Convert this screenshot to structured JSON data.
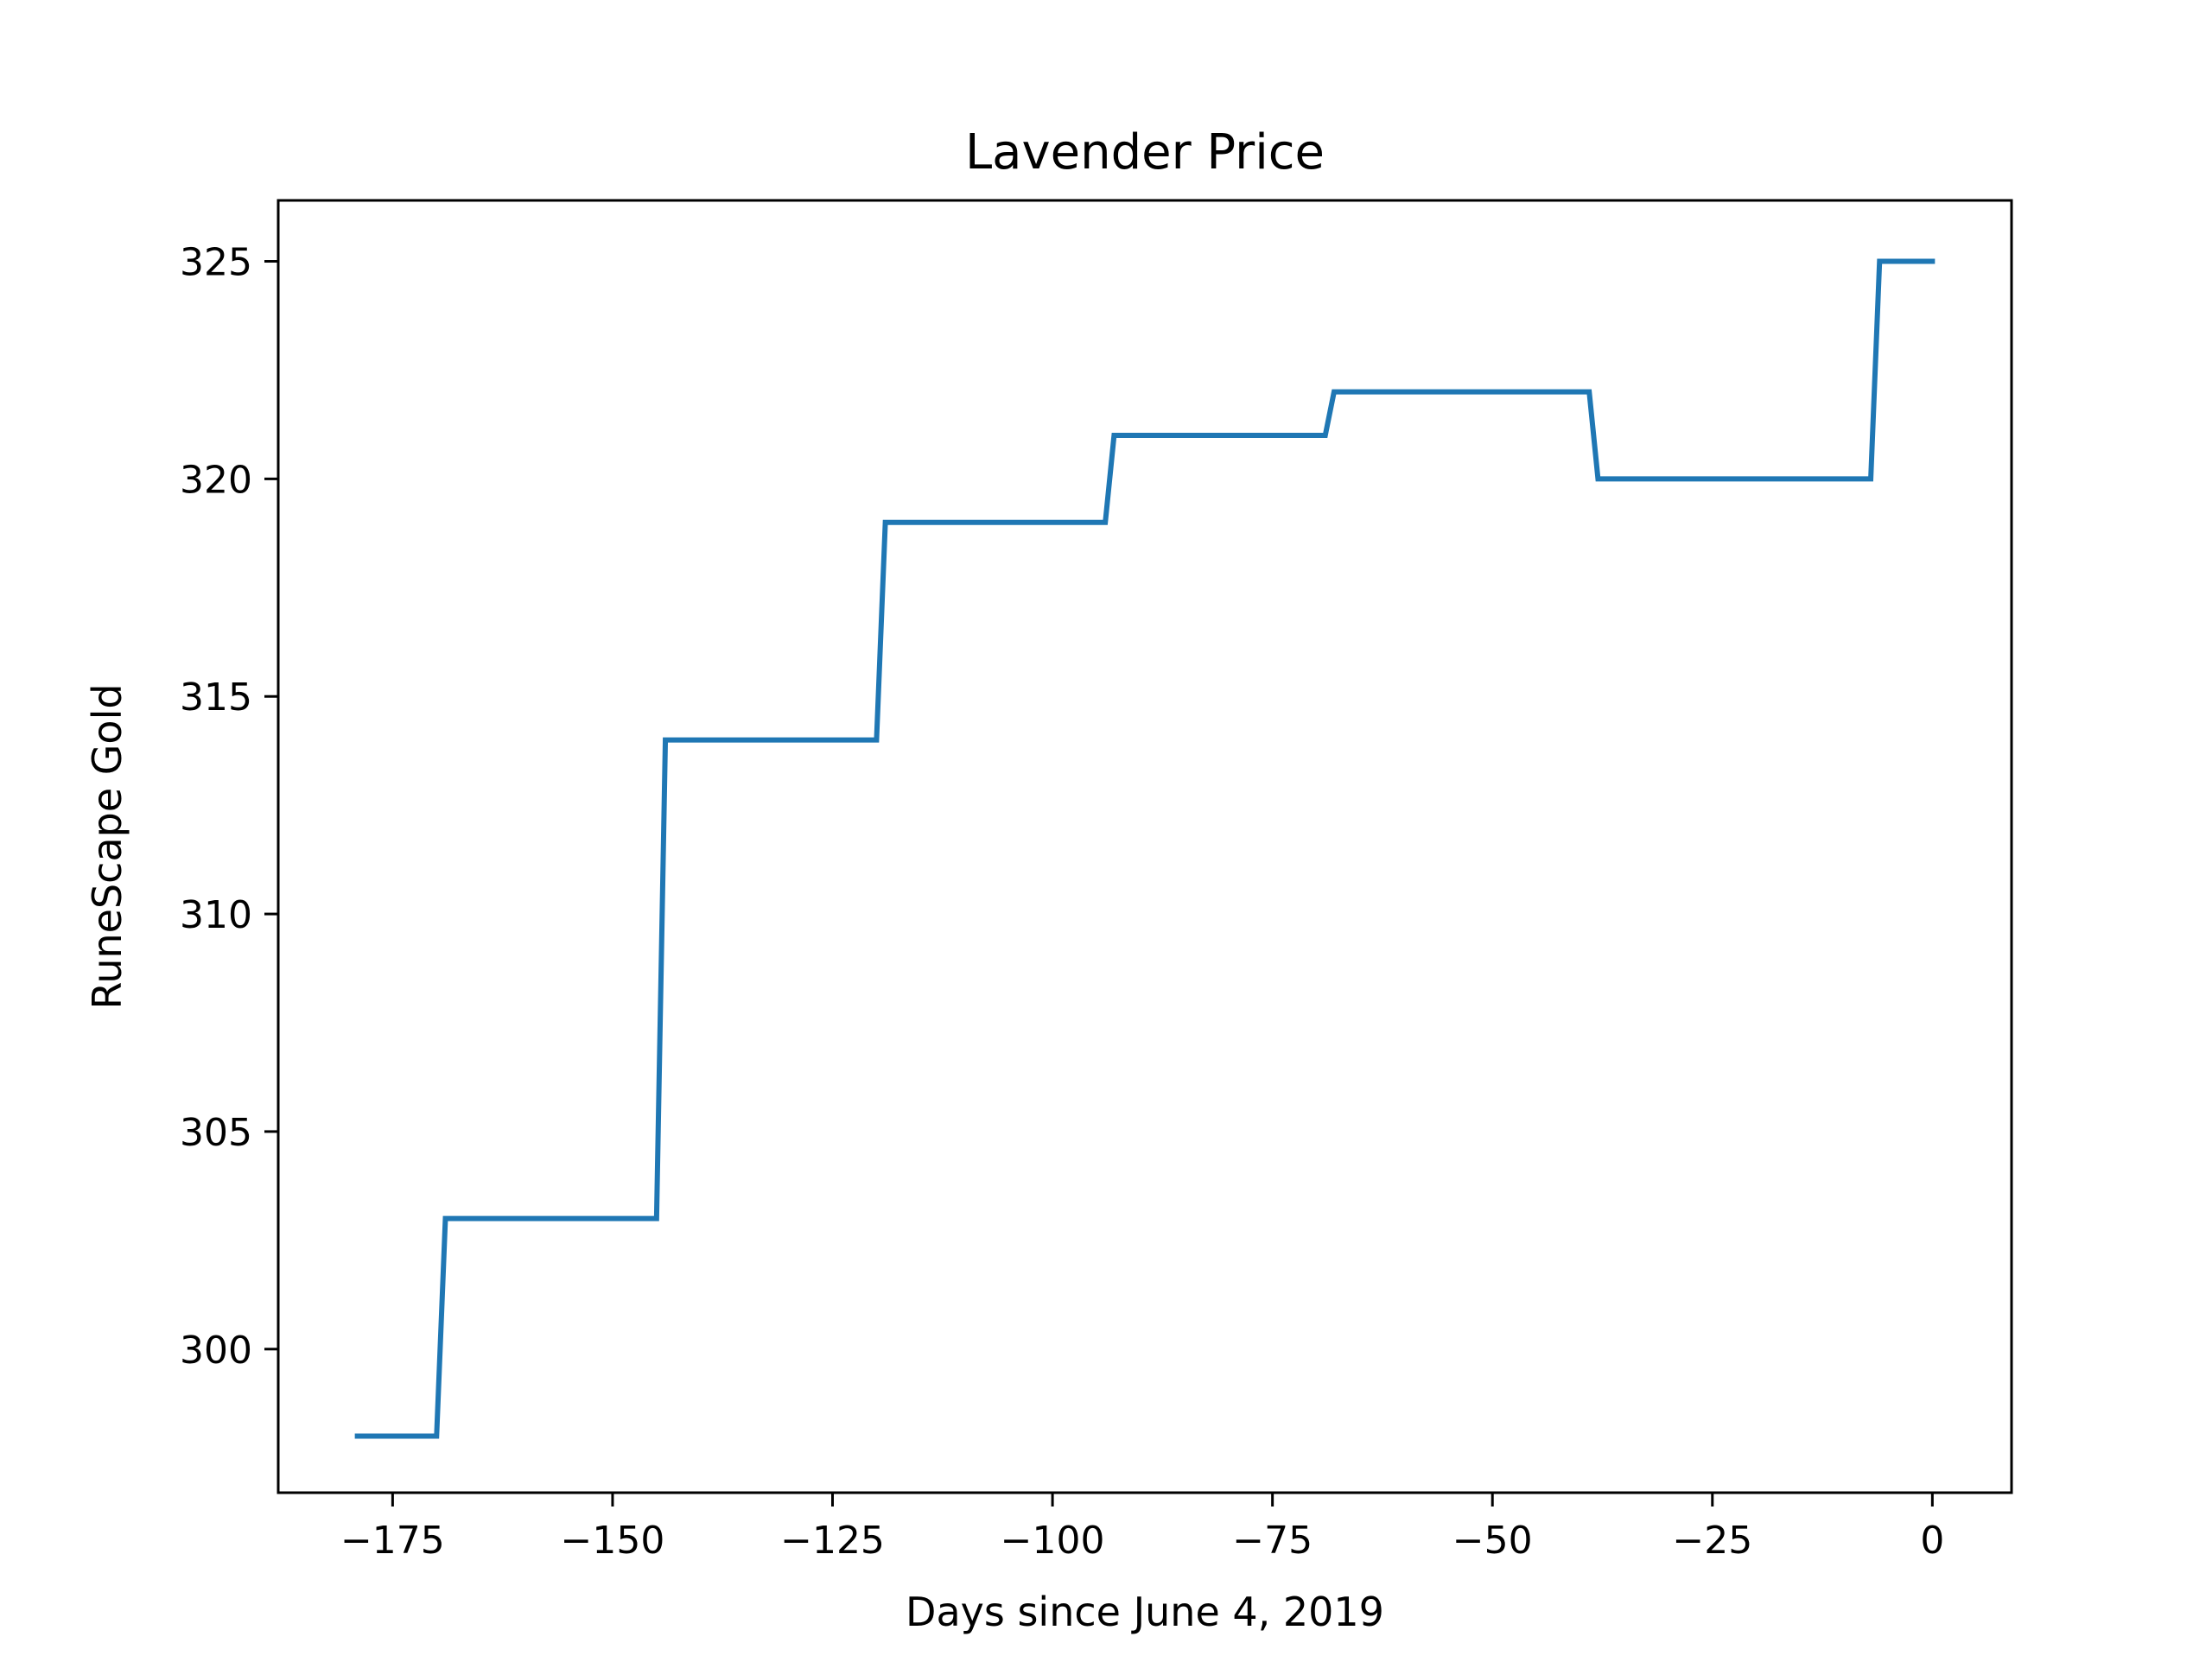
{
  "chart_data": {
    "type": "line",
    "title": "Lavender Price",
    "xlabel": "Days since June 4, 2019",
    "ylabel": "RuneScape Gold",
    "xlim": [
      -188,
      9
    ],
    "ylim": [
      296.7,
      326.4
    ],
    "xticks": [
      -175,
      -150,
      -125,
      -100,
      -75,
      -50,
      -25,
      0
    ],
    "xtick_labels": [
      "−175",
      "−150",
      "−125",
      "−100",
      "−75",
      "−50",
      "−25",
      "0"
    ],
    "yticks": [
      300,
      305,
      310,
      315,
      320,
      325
    ],
    "ytick_labels": [
      "300",
      "305",
      "310",
      "315",
      "320",
      "325"
    ],
    "grid": false,
    "series": [
      {
        "color": "#1f77b4",
        "x": [
          -179,
          -170,
          -169,
          -145,
          -144,
          -120,
          -119,
          -94,
          -93,
          -69,
          -68,
          -39,
          -38,
          -7,
          -6,
          0
        ],
        "y": [
          298,
          298,
          303,
          303,
          314,
          314,
          319,
          319,
          321,
          321,
          322,
          322,
          320,
          320,
          325,
          325
        ]
      }
    ]
  }
}
